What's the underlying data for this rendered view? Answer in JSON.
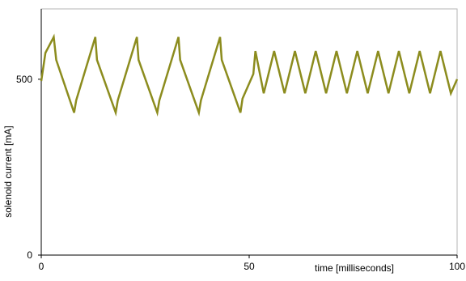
{
  "chart_data": {
    "type": "line",
    "title": "",
    "xlabel": "time [milliseconds]",
    "ylabel": "solenoid current [mA]",
    "xlim": [
      0,
      100
    ],
    "ylim": [
      0,
      700
    ],
    "x_ticks": [
      {
        "value": 0,
        "label": "0"
      },
      {
        "value": 50,
        "label": "50"
      },
      {
        "value": 100,
        "label": "100"
      }
    ],
    "y_ticks": [
      {
        "value": 0,
        "label": "0"
      },
      {
        "value": 500,
        "label": "500"
      }
    ],
    "grid": false,
    "legend": "none",
    "series": [
      {
        "color": "#8c8c1e",
        "x": [
          0,
          1,
          3,
          3.6,
          7.9,
          8.4,
          13,
          13.4,
          17.9,
          18.4,
          23,
          23.4,
          27.9,
          28.4,
          33,
          33.4,
          37.9,
          38.4,
          43,
          43.4,
          47.9,
          48.4,
          51,
          51.5,
          53.5,
          56,
          58.5,
          61,
          63.5,
          66,
          68.5,
          71,
          73.5,
          76,
          78.5,
          81,
          83.5,
          86,
          88.5,
          91,
          93.5,
          96,
          98.5,
          100
        ],
        "y": [
          495,
          575,
          620,
          555,
          405,
          440,
          620,
          555,
          405,
          440,
          620,
          555,
          405,
          440,
          620,
          555,
          405,
          440,
          620,
          555,
          405,
          445,
          515,
          580,
          460,
          580,
          460,
          580,
          460,
          580,
          460,
          580,
          460,
          580,
          460,
          580,
          460,
          580,
          460,
          580,
          460,
          580,
          460,
          500
        ]
      }
    ]
  }
}
